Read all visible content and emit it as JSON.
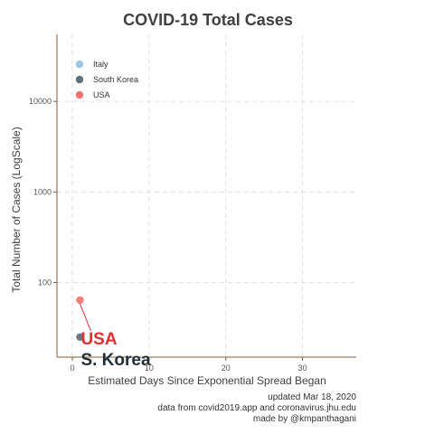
{
  "chart_data": {
    "type": "scatter",
    "title": "COVID-19 Total Cases",
    "xlabel": "Estimated Days Since Exponential Spread Began",
    "ylabel": "Total Number of Cases (LogScale)",
    "y_scale": "log",
    "xlim": [
      -2,
      37
    ],
    "ylim": [
      15,
      55000
    ],
    "x_ticks": [
      0,
      10,
      20,
      30
    ],
    "y_ticks": [
      100,
      1000,
      10000
    ],
    "grid": true,
    "legend_position": "top-left",
    "series": [
      {
        "name": "Italy",
        "color": "#7fb3d5",
        "points": []
      },
      {
        "name": "South Korea",
        "color": "#2c3e50",
        "points": [
          {
            "x": 1,
            "y": 25
          }
        ]
      },
      {
        "name": "USA",
        "color": "#e8483f",
        "points": [
          {
            "x": 1,
            "y": 64
          }
        ]
      }
    ],
    "annotations": [
      {
        "text": "USA",
        "x": 1,
        "y": 64,
        "color": "#e03030"
      },
      {
        "text": "S. Korea",
        "x": 1,
        "y": 25,
        "color": "#1f2d3a"
      }
    ]
  },
  "caption": {
    "line1": "updated Mar 18, 2020",
    "line2": "data from covid2019.app and coronavirus.jhu.edu",
    "line3": "made by @kmpanthagani"
  }
}
